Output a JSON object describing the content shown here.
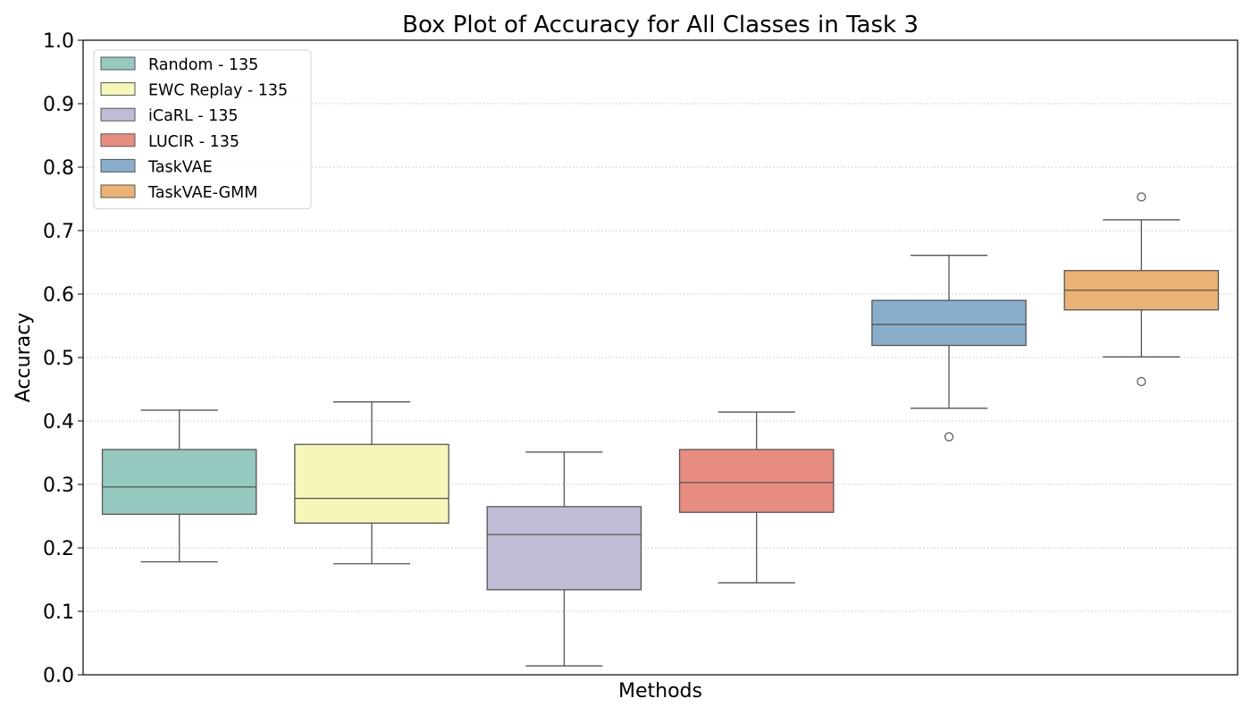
{
  "chart_data": {
    "type": "box",
    "title": "Box Plot of Accuracy for All Classes in Task 3",
    "xlabel": "Methods",
    "ylabel": "Accuracy",
    "ylim": [
      0.0,
      1.0
    ],
    "yticks": [
      "0.0",
      "0.1",
      "0.2",
      "0.3",
      "0.4",
      "0.5",
      "0.6",
      "0.7",
      "0.8",
      "0.9",
      "1.0"
    ],
    "grid": "horizontal-dotted",
    "legend_position": "top-left",
    "series": [
      {
        "name": "Random - 135",
        "color": "#96c9c0",
        "whisker_low": 0.178,
        "q1": 0.253,
        "median": 0.296,
        "q3": 0.355,
        "whisker_high": 0.417,
        "outliers": []
      },
      {
        "name": "EWC Replay - 135",
        "color": "#f6f6b9",
        "whisker_low": 0.175,
        "q1": 0.239,
        "median": 0.278,
        "q3": 0.363,
        "whisker_high": 0.43,
        "outliers": []
      },
      {
        "name": "iCaRL - 135",
        "color": "#c0bcd6",
        "whisker_low": 0.014,
        "q1": 0.134,
        "median": 0.221,
        "q3": 0.265,
        "whisker_high": 0.351,
        "outliers": []
      },
      {
        "name": "LUCIR - 135",
        "color": "#e98c80",
        "whisker_low": 0.145,
        "q1": 0.256,
        "median": 0.303,
        "q3": 0.355,
        "whisker_high": 0.414,
        "outliers": []
      },
      {
        "name": "TaskVAE",
        "color": "#89aecb",
        "whisker_low": 0.42,
        "q1": 0.519,
        "median": 0.552,
        "q3": 0.59,
        "whisker_high": 0.661,
        "outliers": [
          0.375
        ]
      },
      {
        "name": "TaskVAE-GMM",
        "color": "#ecb273",
        "whisker_low": 0.501,
        "q1": 0.575,
        "median": 0.606,
        "q3": 0.637,
        "whisker_high": 0.717,
        "outliers": [
          0.753,
          0.462
        ]
      }
    ]
  }
}
